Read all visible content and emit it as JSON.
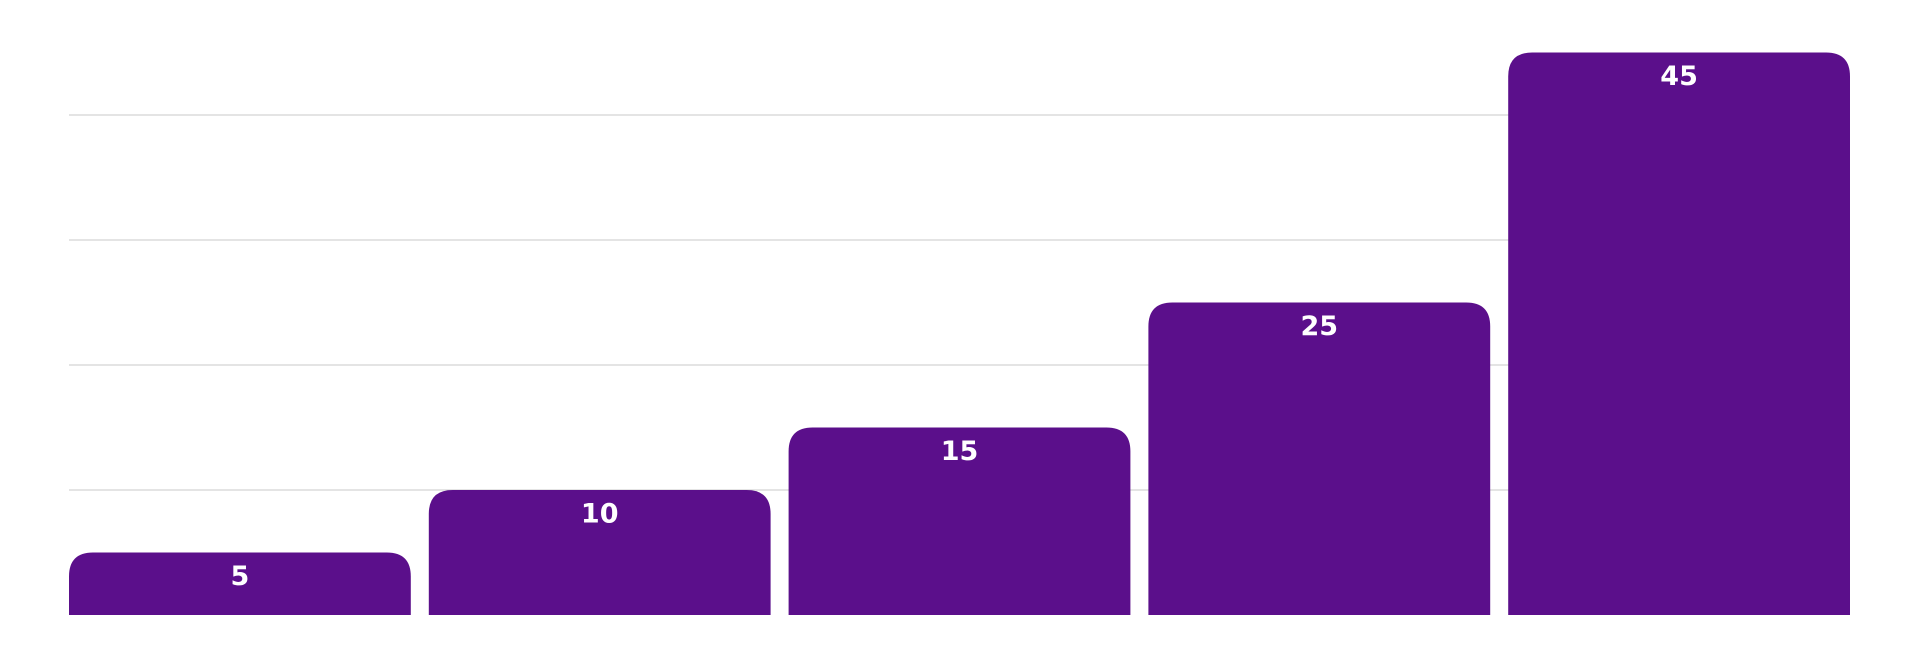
{
  "chart_data": {
    "type": "bar",
    "values": [
      5,
      10,
      15,
      25,
      45
    ],
    "color": "#5b0f8b",
    "ylim": [
      0,
      48
    ],
    "yticks": [
      10,
      20,
      30,
      40
    ],
    "grid": true
  }
}
